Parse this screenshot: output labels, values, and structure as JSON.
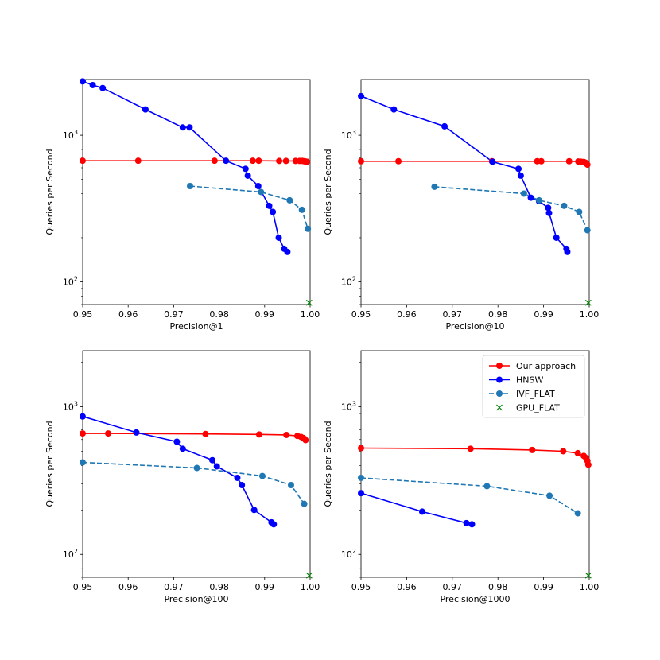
{
  "chart_data": [
    {
      "type": "line",
      "xlabel": "Precision@1",
      "ylabel": "Queries per Second",
      "xlim": [
        0.95,
        1.0
      ],
      "ylim": [
        70,
        2400
      ],
      "yscale": "log",
      "xticks": [
        "0.95",
        "0.96",
        "0.97",
        "0.98",
        "0.99",
        "1.00"
      ],
      "yticks": [
        {
          "value": 100,
          "label": "10²"
        },
        {
          "value": 1000,
          "label": "10³"
        }
      ],
      "series": [
        {
          "name": "Our approach",
          "color": "#ff0000",
          "style": "solid",
          "marker": "circle",
          "x": [
            0.95,
            0.9622,
            0.979,
            0.9874,
            0.9887,
            0.9932,
            0.9947,
            0.9968,
            0.9977,
            0.9983,
            0.9987,
            0.999,
            0.9993
          ],
          "y": [
            670,
            670,
            670,
            670,
            670,
            668,
            668,
            668,
            668,
            668,
            665,
            662,
            660
          ]
        },
        {
          "name": "HNSW",
          "color": "#0000ff",
          "style": "solid",
          "marker": "circle",
          "x": [
            0.95,
            0.9522,
            0.9544,
            0.9638,
            0.972,
            0.9735,
            0.9815,
            0.9858,
            0.9863,
            0.9886,
            0.991,
            0.9918,
            0.9931,
            0.9943,
            0.995
          ],
          "y": [
            2330,
            2200,
            2100,
            1500,
            1130,
            1130,
            670,
            590,
            530,
            450,
            330,
            300,
            200,
            168,
            160
          ]
        },
        {
          "name": "IVF_FLAT",
          "color": "#1f77b4",
          "style": "dashed",
          "marker": "circle",
          "x": [
            0.9736,
            0.9892,
            0.9955,
            0.9982,
            0.9995
          ],
          "y": [
            450,
            410,
            360,
            310,
            230
          ]
        },
        {
          "name": "GPU_FLAT",
          "color": "#008000",
          "style": "none",
          "marker": "x",
          "x": [
            0.9998
          ],
          "y": [
            72
          ]
        }
      ]
    },
    {
      "type": "line",
      "xlabel": "Precision@10",
      "ylabel": "Queries per Second",
      "xlim": [
        0.95,
        1.0
      ],
      "ylim": [
        70,
        2400
      ],
      "yscale": "log",
      "xticks": [
        "0.95",
        "0.96",
        "0.97",
        "0.98",
        "0.99",
        "1.00"
      ],
      "yticks": [
        {
          "value": 100,
          "label": "10²"
        },
        {
          "value": 1000,
          "label": "10³"
        }
      ],
      "series": [
        {
          "name": "Our approach",
          "color": "#ff0000",
          "style": "solid",
          "marker": "circle",
          "x": [
            0.95,
            0.9582,
            0.9787,
            0.9886,
            0.9895,
            0.9956,
            0.9976,
            0.9982,
            0.9988,
            0.9992,
            0.9994,
            0.9996
          ],
          "y": [
            665,
            665,
            665,
            665,
            665,
            665,
            662,
            660,
            658,
            650,
            640,
            630
          ]
        },
        {
          "name": "HNSW",
          "color": "#0000ff",
          "style": "solid",
          "marker": "circle",
          "x": [
            0.95,
            0.9572,
            0.9683,
            0.9788,
            0.9845,
            0.985,
            0.9872,
            0.989,
            0.991,
            0.9912,
            0.9928,
            0.995,
            0.9952
          ],
          "y": [
            1850,
            1500,
            1150,
            660,
            590,
            530,
            375,
            355,
            320,
            295,
            200,
            168,
            160
          ]
        },
        {
          "name": "IVF_FLAT",
          "color": "#1f77b4",
          "style": "dashed",
          "marker": "circle",
          "x": [
            0.9661,
            0.9857,
            0.989,
            0.9945,
            0.9978,
            0.9996
          ],
          "y": [
            445,
            400,
            360,
            330,
            300,
            225
          ]
        },
        {
          "name": "GPU_FLAT",
          "color": "#008000",
          "style": "none",
          "marker": "x",
          "x": [
            0.9998
          ],
          "y": [
            72
          ]
        }
      ]
    },
    {
      "type": "line",
      "xlabel": "Precision@100",
      "ylabel": "Queries per Second",
      "xlim": [
        0.95,
        1.0
      ],
      "ylim": [
        70,
        2400
      ],
      "yscale": "log",
      "xticks": [
        "0.95",
        "0.96",
        "0.97",
        "0.98",
        "0.99",
        "1.00"
      ],
      "yticks": [
        {
          "value": 100,
          "label": "10²"
        },
        {
          "value": 1000,
          "label": "10³"
        }
      ],
      "series": [
        {
          "name": "Our approach",
          "color": "#ff0000",
          "style": "solid",
          "marker": "circle",
          "x": [
            0.95,
            0.9556,
            0.977,
            0.9888,
            0.9948,
            0.9972,
            0.998,
            0.9985,
            0.9988,
            0.999
          ],
          "y": [
            660,
            660,
            655,
            650,
            645,
            635,
            625,
            615,
            605,
            595
          ]
        },
        {
          "name": "HNSW",
          "color": "#0000ff",
          "style": "solid",
          "marker": "circle",
          "x": [
            0.95,
            0.9618,
            0.9707,
            0.972,
            0.9785,
            0.9795,
            0.984,
            0.985,
            0.9877,
            0.9915,
            0.992
          ],
          "y": [
            860,
            670,
            580,
            520,
            435,
            395,
            330,
            295,
            200,
            165,
            160
          ]
        },
        {
          "name": "IVF_FLAT",
          "color": "#1f77b4",
          "style": "dashed",
          "marker": "circle",
          "x": [
            0.95,
            0.9751,
            0.9895,
            0.9958,
            0.9987
          ],
          "y": [
            420,
            385,
            340,
            295,
            220
          ]
        },
        {
          "name": "GPU_FLAT",
          "color": "#008000",
          "style": "none",
          "marker": "x",
          "x": [
            0.9998
          ],
          "y": [
            72
          ]
        }
      ]
    },
    {
      "type": "line",
      "xlabel": "Precision@1000",
      "ylabel": "Queries per Second",
      "xlim": [
        0.95,
        1.0
      ],
      "ylim": [
        70,
        2400
      ],
      "yscale": "log",
      "xticks": [
        "0.95",
        "0.96",
        "0.97",
        "0.98",
        "0.99",
        "1.00"
      ],
      "yticks": [
        {
          "value": 100,
          "label": "10²"
        },
        {
          "value": 1000,
          "label": "10³"
        }
      ],
      "legend": {
        "position": "top-right",
        "entries": [
          "Our approach",
          "HNSW",
          "IVF_FLAT",
          "GPU_FLAT"
        ]
      },
      "series": [
        {
          "name": "Our approach",
          "color": "#ff0000",
          "style": "solid",
          "marker": "circle",
          "x": [
            0.95,
            0.974,
            0.9875,
            0.9943,
            0.9975,
            0.9988,
            0.9993,
            0.9996,
            0.9998
          ],
          "y": [
            525,
            520,
            510,
            500,
            485,
            465,
            450,
            430,
            405
          ]
        },
        {
          "name": "HNSW",
          "color": "#0000ff",
          "style": "solid",
          "marker": "circle",
          "x": [
            0.95,
            0.9634,
            0.9731,
            0.9743
          ],
          "y": [
            260,
            195,
            163,
            160
          ]
        },
        {
          "name": "IVF_FLAT",
          "color": "#1f77b4",
          "style": "dashed",
          "marker": "circle",
          "x": [
            0.95,
            0.9776,
            0.9913,
            0.9975
          ],
          "y": [
            330,
            290,
            250,
            190
          ]
        },
        {
          "name": "GPU_FLAT",
          "color": "#008000",
          "style": "none",
          "marker": "x",
          "x": [
            0.9998
          ],
          "y": [
            72
          ]
        }
      ]
    }
  ]
}
